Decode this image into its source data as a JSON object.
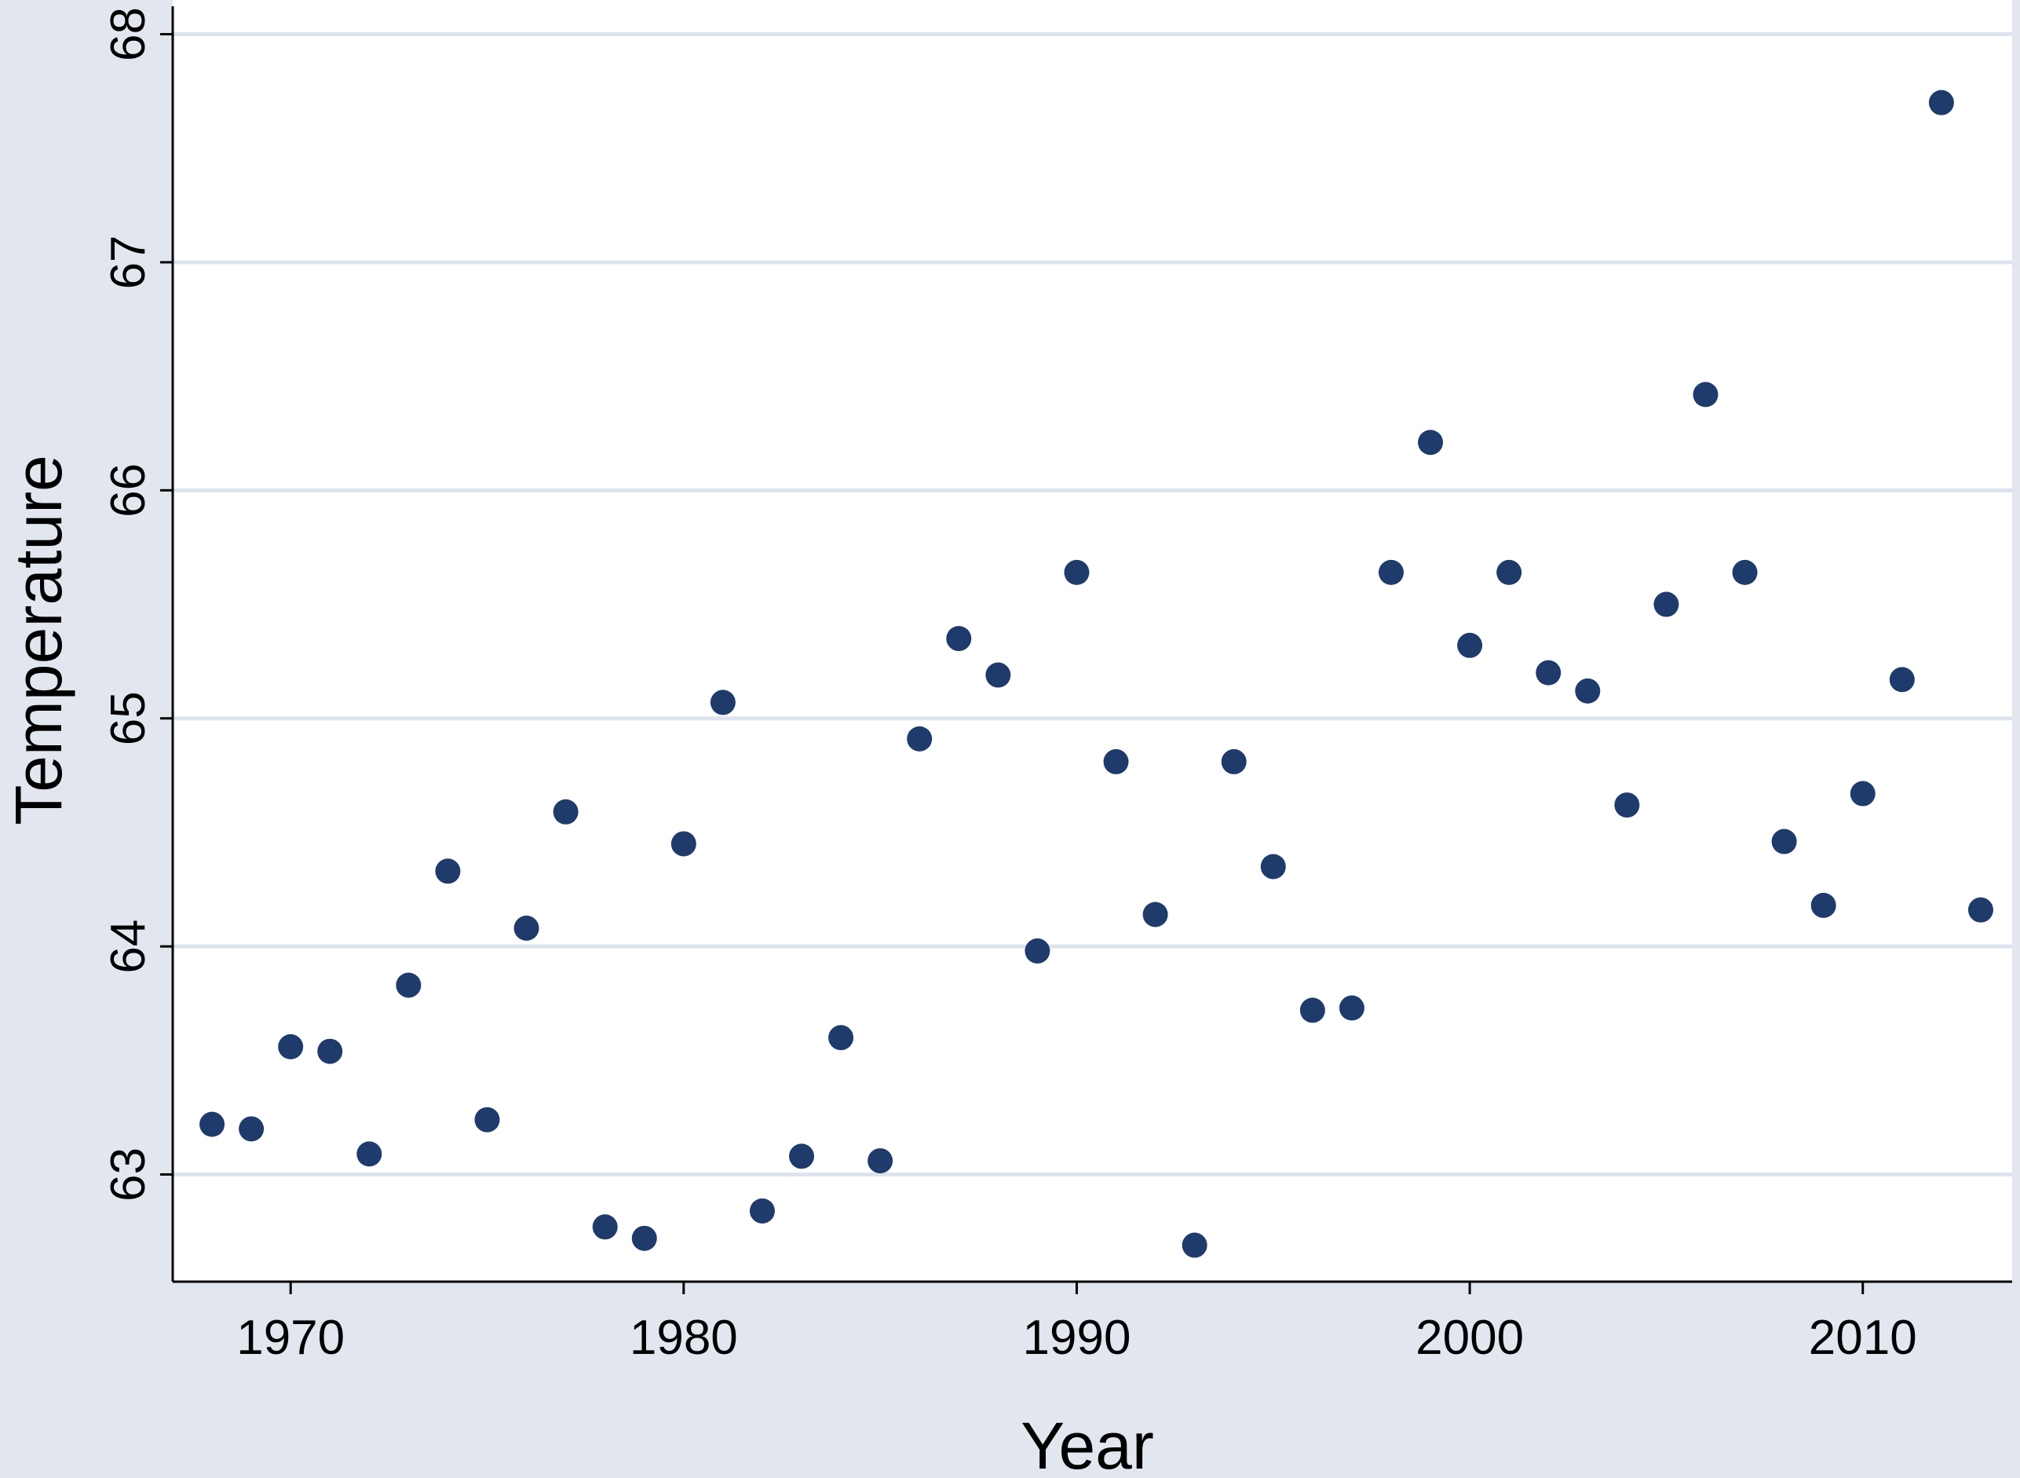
{
  "chart_data": {
    "type": "scatter",
    "xlabel": "Year",
    "ylabel": "Temperature",
    "xlim": [
      1967,
      2013.8
    ],
    "ylim": [
      62.53,
      68.15
    ],
    "xticks": [
      1970,
      1980,
      1990,
      2000,
      2010
    ],
    "yticks": [
      63,
      64,
      65,
      66,
      67,
      68
    ],
    "grid": "horizontal",
    "series": [
      {
        "points": [
          [
            1968,
            63.22
          ],
          [
            1969,
            63.2
          ],
          [
            1970,
            63.56
          ],
          [
            1971,
            63.54
          ],
          [
            1972,
            63.09
          ],
          [
            1973,
            63.83
          ],
          [
            1974,
            64.33
          ],
          [
            1975,
            63.24
          ],
          [
            1976,
            64.08
          ],
          [
            1977,
            64.59
          ],
          [
            1978,
            62.77
          ],
          [
            1979,
            62.72
          ],
          [
            1980,
            64.45
          ],
          [
            1981,
            65.07
          ],
          [
            1982,
            62.84
          ],
          [
            1983,
            63.08
          ],
          [
            1984,
            63.6
          ],
          [
            1985,
            63.06
          ],
          [
            1986,
            64.91
          ],
          [
            1987,
            65.35
          ],
          [
            1988,
            65.19
          ],
          [
            1989,
            63.98
          ],
          [
            1990,
            65.64
          ],
          [
            1991,
            64.81
          ],
          [
            1992,
            64.14
          ],
          [
            1993,
            62.69
          ],
          [
            1994,
            64.81
          ],
          [
            1995,
            64.35
          ],
          [
            1996,
            63.72
          ],
          [
            1997,
            63.73
          ],
          [
            1998,
            65.64
          ],
          [
            1999,
            66.21
          ],
          [
            2000,
            65.32
          ],
          [
            2001,
            65.64
          ],
          [
            2002,
            65.2
          ],
          [
            2003,
            65.12
          ],
          [
            2004,
            64.62
          ],
          [
            2005,
            65.5
          ],
          [
            2006,
            66.42
          ],
          [
            2007,
            65.64
          ],
          [
            2008,
            64.46
          ],
          [
            2009,
            64.18
          ],
          [
            2010,
            64.67
          ],
          [
            2011,
            65.17
          ],
          [
            2012,
            67.7
          ],
          [
            2013,
            64.16
          ]
        ]
      }
    ],
    "colors": {
      "background": "#e1e6ef",
      "plot_background": "#ffffff",
      "gridline": "#dde3ee",
      "marker": "#1f3b6b",
      "axis": "#000000"
    }
  }
}
